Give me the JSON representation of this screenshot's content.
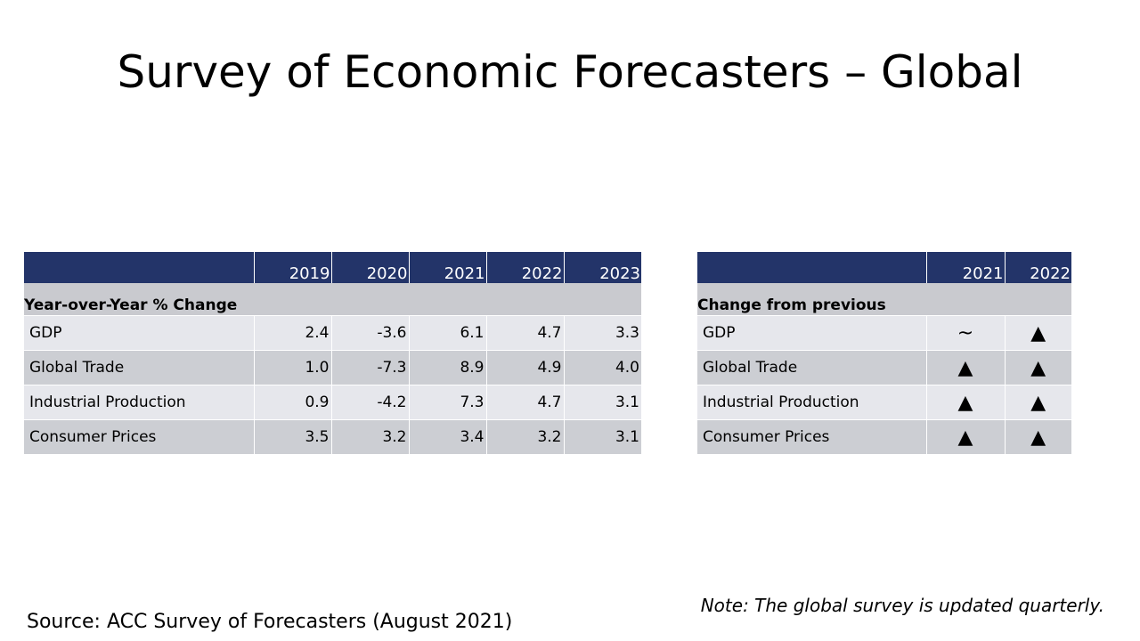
{
  "title": "Survey of Economic Forecasters – Global",
  "forecast_table": {
    "years": [
      "2019",
      "2020",
      "2021",
      "2022",
      "2023"
    ],
    "section_label": "Year-over-Year % Change",
    "rows": [
      {
        "label": "GDP",
        "values": [
          "2.4",
          "-3.6",
          "6.1",
          "4.7",
          "3.3"
        ]
      },
      {
        "label": "Global Trade",
        "values": [
          "1.0",
          "-7.3",
          "8.9",
          "4.9",
          "4.0"
        ]
      },
      {
        "label": "Industrial Production",
        "values": [
          "0.9",
          "-4.2",
          "7.3",
          "4.7",
          "3.1"
        ]
      },
      {
        "label": "Consumer Prices",
        "values": [
          "3.5",
          "3.2",
          "3.4",
          "3.2",
          "3.1"
        ]
      }
    ]
  },
  "change_table": {
    "years": [
      "2021",
      "2022"
    ],
    "section_label": "Change from previous",
    "rows": [
      {
        "label": "GDP",
        "values": [
          "~",
          "▲"
        ]
      },
      {
        "label": "Global Trade",
        "values": [
          "▲",
          "▲"
        ]
      },
      {
        "label": "Industrial Production",
        "values": [
          "▲",
          "▲"
        ]
      },
      {
        "label": "Consumer Prices",
        "values": [
          "▲",
          "▲"
        ]
      }
    ]
  },
  "source": "Source: ACC Survey of Forecasters (August 2021)",
  "note": "Note: The global survey is updated quarterly.",
  "colors": {
    "header_bg": "#233469",
    "section_bg": "#c9cacf",
    "row_light": "#e6e7ec",
    "row_dark": "#ccced3"
  }
}
